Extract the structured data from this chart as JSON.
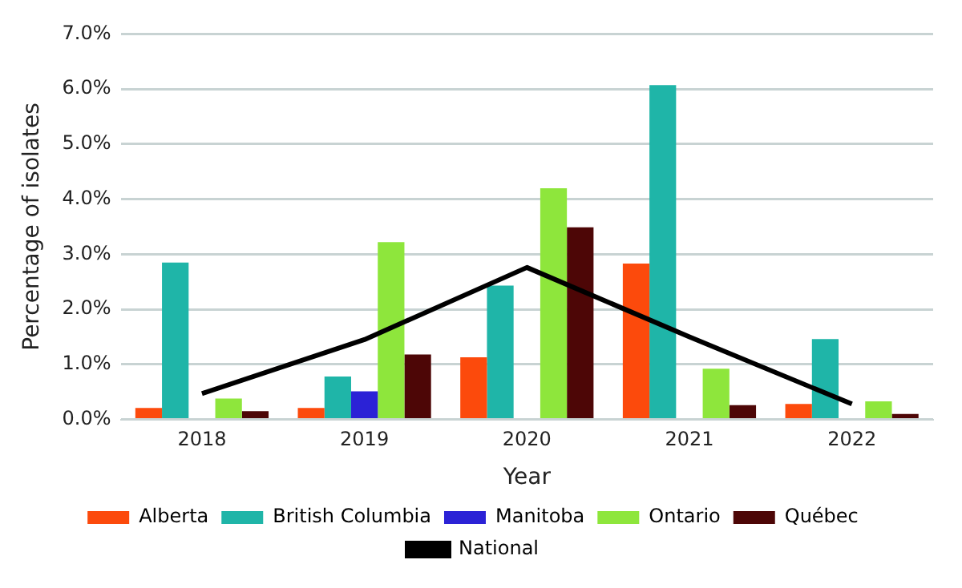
{
  "chart_data": {
    "type": "bar",
    "xlabel": "Year",
    "ylabel": "Percentage of isolates",
    "categories": [
      "2018",
      "2019",
      "2020",
      "2021",
      "2022"
    ],
    "series": [
      {
        "name": "Alberta",
        "color": "#fc4a0c",
        "values": [
          0.21,
          0.21,
          1.13,
          2.83,
          0.28
        ]
      },
      {
        "name": "British Columbia",
        "color": "#1fb5a8",
        "values": [
          2.85,
          0.78,
          2.43,
          6.07,
          1.46
        ]
      },
      {
        "name": "Manitoba",
        "color": "#2b22d6",
        "values": [
          0,
          0.51,
          0,
          0,
          0
        ]
      },
      {
        "name": "Ontario",
        "color": "#8ee63c",
        "values": [
          0.38,
          3.22,
          4.2,
          0.92,
          0.33
        ]
      },
      {
        "name": "Québec",
        "color": "#4d0606",
        "values": [
          0.15,
          1.18,
          3.49,
          0.26,
          0.1
        ]
      },
      {
        "name": "National",
        "type": "line",
        "color": "#000000",
        "values": [
          0.47,
          1.45,
          2.76,
          1.5,
          0.28
        ]
      }
    ],
    "ylim": [
      0,
      7
    ],
    "yticks": [
      {
        "value": 0,
        "label": "0.0%"
      },
      {
        "value": 1,
        "label": "1.0%"
      },
      {
        "value": 2,
        "label": "2.0%"
      },
      {
        "value": 3,
        "label": "3.0%"
      },
      {
        "value": 4,
        "label": "4.0%"
      },
      {
        "value": 5,
        "label": "5.0%"
      },
      {
        "value": 6,
        "label": "6.0%"
      },
      {
        "value": 7,
        "label": "7.0%"
      }
    ],
    "grid": "y",
    "legend": "bottom",
    "marker": "none"
  }
}
